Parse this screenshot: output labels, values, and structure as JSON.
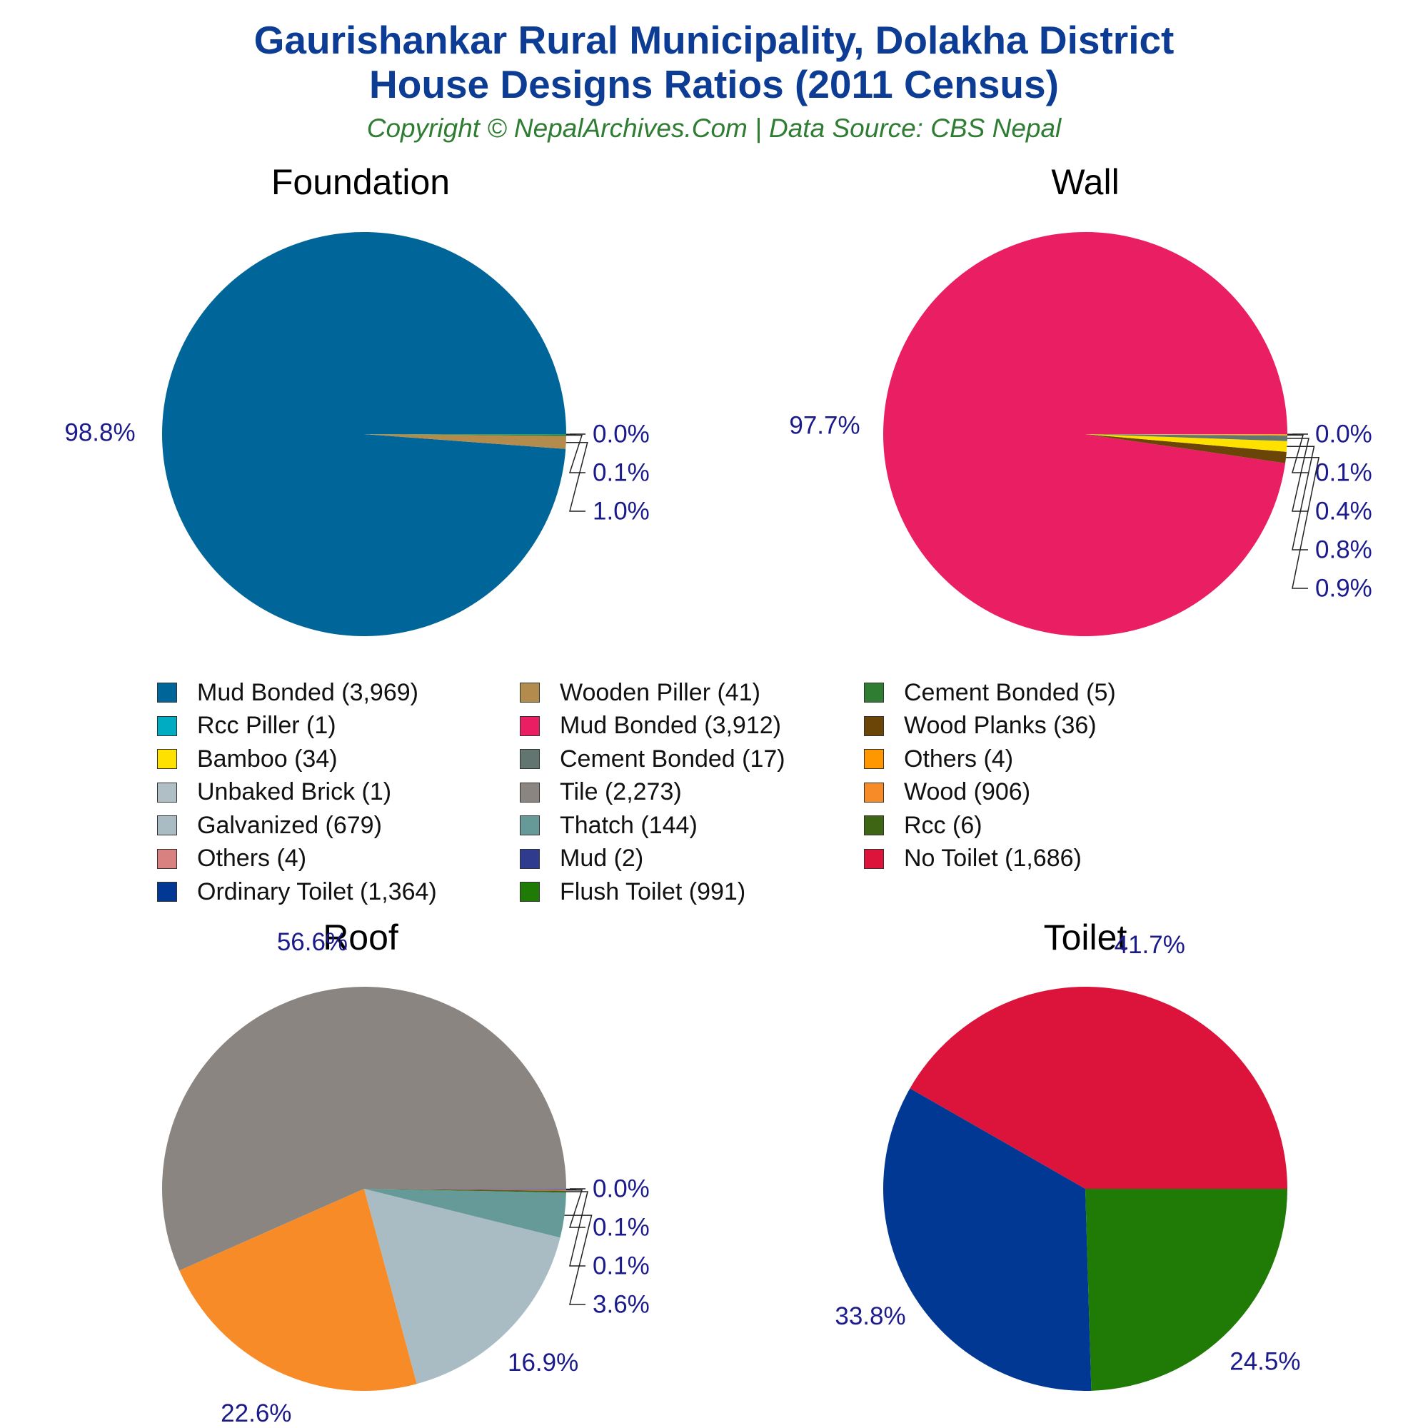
{
  "title": {
    "line1": "Gaurishankar Rural Municipality, Dolakha District",
    "line2": "House Designs Ratios (2011 Census)"
  },
  "subtitle": "Copyright © NepalArchives.Com | Data Source: CBS Nepal",
  "colors": {
    "title": "#0d3c94",
    "subtitle": "#2e7d32",
    "percent_label": "#1a1a8c"
  },
  "chart_data": [
    {
      "type": "pie",
      "title": "Foundation",
      "slices": [
        {
          "name": "Mud Bonded",
          "value": 3969,
          "label": "98.8%",
          "color": "#006699"
        },
        {
          "name": "Wooden Piller",
          "value": 41,
          "label": "1.0%",
          "color": "#b38b4d"
        },
        {
          "name": "Cement Bonded",
          "value": 5,
          "label": "0.1%",
          "color": "#2e7d32"
        },
        {
          "name": "Rcc Piller",
          "value": 1,
          "label": "0.0%",
          "color": "#00acc1"
        }
      ]
    },
    {
      "type": "pie",
      "title": "Wall",
      "slices": [
        {
          "name": "Mud Bonded",
          "value": 3912,
          "label": "97.7%",
          "color": "#e91e63"
        },
        {
          "name": "Wood Planks",
          "value": 36,
          "label": "0.9%",
          "color": "#6b4407"
        },
        {
          "name": "Bamboo",
          "value": 34,
          "label": "0.8%",
          "color": "#ffe100"
        },
        {
          "name": "Cement Bonded",
          "value": 17,
          "label": "0.4%",
          "color": "#627570"
        },
        {
          "name": "Others",
          "value": 4,
          "label": "0.1%",
          "color": "#ff9800"
        },
        {
          "name": "Unbaked Brick",
          "value": 1,
          "label": "0.0%",
          "color": "#b0bec5"
        }
      ]
    },
    {
      "type": "pie",
      "title": "Roof",
      "slices": [
        {
          "name": "Tile",
          "value": 2273,
          "label": "56.6%",
          "color": "#8b8582"
        },
        {
          "name": "Wood",
          "value": 906,
          "label": "22.6%",
          "color": "#f68b28"
        },
        {
          "name": "Galvanized",
          "value": 679,
          "label": "16.9%",
          "color": "#a9bcc4"
        },
        {
          "name": "Thatch",
          "value": 144,
          "label": "3.6%",
          "color": "#659a99"
        },
        {
          "name": "Rcc",
          "value": 6,
          "label": "0.1%",
          "color": "#3d6514"
        },
        {
          "name": "Others",
          "value": 4,
          "label": "0.1%",
          "color": "#d98080"
        },
        {
          "name": "Mud",
          "value": 2,
          "label": "0.0%",
          "color": "#2e3b8f"
        }
      ]
    },
    {
      "type": "pie",
      "title": "Toilet",
      "slices": [
        {
          "name": "No Toilet",
          "value": 1686,
          "label": "41.7%",
          "color": "#dc143c"
        },
        {
          "name": "Ordinary Toilet",
          "value": 1364,
          "label": "33.8%",
          "color": "#003893"
        },
        {
          "name": "Flush Toilet",
          "value": 991,
          "label": "24.5%",
          "color": "#1f7a06"
        }
      ]
    }
  ],
  "legend": [
    {
      "label": "Mud Bonded (3,969)",
      "color": "#006699"
    },
    {
      "label": "Wooden Piller (41)",
      "color": "#b38b4d"
    },
    {
      "label": "Cement Bonded (5)",
      "color": "#2e7d32"
    },
    {
      "label": "Rcc Piller (1)",
      "color": "#00acc1"
    },
    {
      "label": "Mud Bonded (3,912)",
      "color": "#e91e63"
    },
    {
      "label": "Wood Planks (36)",
      "color": "#6b4407"
    },
    {
      "label": "Bamboo (34)",
      "color": "#ffe100"
    },
    {
      "label": "Cement Bonded (17)",
      "color": "#627570"
    },
    {
      "label": "Others (4)",
      "color": "#ff9800"
    },
    {
      "label": "Unbaked Brick (1)",
      "color": "#b0bec5"
    },
    {
      "label": "Tile (2,273)",
      "color": "#8b8582"
    },
    {
      "label": "Wood (906)",
      "color": "#f68b28"
    },
    {
      "label": "Galvanized (679)",
      "color": "#a9bcc4"
    },
    {
      "label": "Thatch (144)",
      "color": "#659a99"
    },
    {
      "label": "Rcc (6)",
      "color": "#3d6514"
    },
    {
      "label": "Others (4)",
      "color": "#d98080"
    },
    {
      "label": "Mud (2)",
      "color": "#2e3b8f"
    },
    {
      "label": "No Toilet (1,686)",
      "color": "#dc143c"
    },
    {
      "label": "Ordinary Toilet (1,364)",
      "color": "#003893"
    },
    {
      "label": "Flush Toilet (991)",
      "color": "#1f7a06"
    }
  ]
}
